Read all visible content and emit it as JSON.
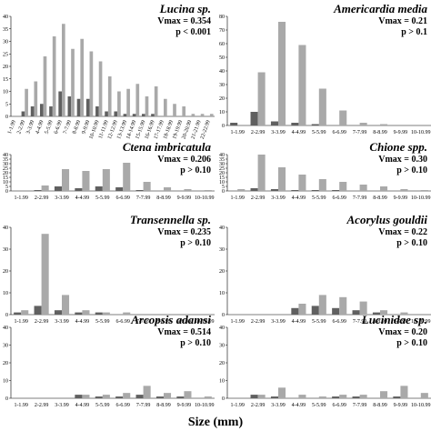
{
  "figure": {
    "xlabel": "Size (mm)"
  },
  "chart_data": [
    {
      "type": "bar",
      "title": "Lucina sp.",
      "vmax": "Vmax = 0.354",
      "p": "p < 0.001",
      "p_color": "#cc0000",
      "ylim": [
        0,
        40
      ],
      "yticks": [
        0,
        5,
        10,
        15,
        20,
        25,
        30,
        35,
        40
      ],
      "categories": [
        "1-1.99",
        "2-2.99",
        "3-3.99",
        "4-4.99",
        "5-5.99",
        "6-6.99",
        "7-7.99",
        "8-8.99",
        "9-9.99",
        "10-10.99",
        "11-11.99",
        "12-12.99",
        "13-13.99",
        "14-14.99",
        "15-15.99",
        "16-16.99",
        "17-17.99",
        "18-18.99",
        "19-19.99",
        "20-20.99",
        "21-21.99",
        "22-22.99"
      ],
      "series": [
        {
          "values": [
            0,
            2,
            4,
            5,
            4,
            10,
            8,
            7,
            7,
            4,
            2,
            2,
            1,
            1,
            1,
            1,
            0,
            0,
            0,
            0,
            0,
            0
          ],
          "color": "#606060"
        },
        {
          "values": [
            0,
            11,
            14,
            24,
            32,
            37,
            27,
            31,
            26,
            22,
            16,
            10,
            11,
            13,
            8,
            12,
            7,
            5,
            4,
            1,
            1,
            1
          ],
          "color": "#a9a9a9"
        }
      ]
    },
    {
      "type": "bar",
      "title": "Americardia media",
      "vmax": "Vmax = 0.21",
      "p": "p > 0.1",
      "p_color": "#000000",
      "ylim": [
        0,
        80
      ],
      "yticks": [
        0,
        10,
        20,
        30,
        40,
        50,
        60,
        70,
        80
      ],
      "categories": [
        "1-1.99",
        "2-2.99",
        "3-3.99",
        "4-4.99",
        "5-5.99",
        "6-6.99",
        "7-7.99",
        "8-8.99",
        "9-9.99",
        "10-10.99"
      ],
      "series": [
        {
          "values": [
            2,
            10,
            3,
            2,
            1,
            0,
            0,
            0,
            0,
            0
          ],
          "color": "#606060"
        },
        {
          "values": [
            0,
            39,
            76,
            59,
            27,
            11,
            2,
            1,
            0,
            0
          ],
          "color": "#a9a9a9"
        }
      ]
    },
    {
      "type": "bar",
      "title": "Ctena imbricatula",
      "vmax": "Vmax = 0.206",
      "p": "p > 0.10",
      "p_color": "#000000",
      "ylim": [
        0,
        40
      ],
      "yticks": [
        0,
        5,
        10,
        15,
        20,
        25,
        30,
        35,
        40
      ],
      "categories": [
        "1-1.99",
        "2-2.99",
        "3-3.99",
        "4-4.99",
        "5-5.99",
        "6-6.99",
        "7-7.99",
        "8-8.99",
        "9-9.99",
        "10-10.99"
      ],
      "series": [
        {
          "values": [
            0,
            1,
            5,
            3,
            5,
            4,
            1,
            0,
            0,
            0
          ],
          "color": "#606060"
        },
        {
          "values": [
            0,
            6,
            24,
            22,
            24,
            31,
            10,
            4,
            2,
            1
          ],
          "color": "#a9a9a9"
        }
      ]
    },
    {
      "type": "bar",
      "title": "Chione spp.",
      "vmax": "Vmax = 0.30",
      "p": "p > 0.10",
      "p_color": "#000000",
      "ylim": [
        0,
        40
      ],
      "yticks": [
        0,
        5,
        10,
        15,
        20,
        25,
        30,
        35,
        40
      ],
      "categories": [
        "1-1.99",
        "2-2.99",
        "3-3.99",
        "4-4.99",
        "5-5.99",
        "6-6.99",
        "7-7.99",
        "8-8.99",
        "9-9.99",
        "10-10.99"
      ],
      "series": [
        {
          "values": [
            0,
            3,
            2,
            1,
            1,
            1,
            0,
            0,
            0,
            0
          ],
          "color": "#606060"
        },
        {
          "values": [
            2,
            40,
            26,
            18,
            13,
            10,
            7,
            5,
            2,
            1
          ],
          "color": "#a9a9a9"
        }
      ]
    },
    {
      "type": "bar",
      "title": "Transennella sp.",
      "vmax": "Vmax = 0.235",
      "p": "p > 0.10",
      "p_color": "#000000",
      "ylim": [
        0,
        40
      ],
      "yticks": [
        0,
        10,
        20,
        30,
        40
      ],
      "categories": [
        "1-1.99",
        "2-2.99",
        "3-3.99",
        "4-4.99",
        "5-5.99",
        "6-6.99",
        "7-7.99",
        "8-8.99",
        "9-9.99",
        "10-10.99"
      ],
      "series": [
        {
          "values": [
            1,
            4,
            2,
            1,
            1,
            0,
            0,
            0,
            0,
            0
          ],
          "color": "#606060"
        },
        {
          "values": [
            2,
            37,
            9,
            2,
            1,
            1,
            0,
            0,
            0,
            0
          ],
          "color": "#a9a9a9"
        }
      ]
    },
    {
      "type": "bar",
      "title": "Acorylus gouldii",
      "vmax": "Vmax = 0.22",
      "p": "p > 0.10",
      "p_color": "#000000",
      "ylim": [
        0,
        40
      ],
      "yticks": [
        0,
        10,
        20,
        30,
        40
      ],
      "categories": [
        "1-1.99",
        "2-2.99",
        "3-3.99",
        "4-4.99",
        "5-5.99",
        "6-6.99",
        "7-7.99",
        "8-8.99",
        "9-9.99",
        "10-10.99"
      ],
      "series": [
        {
          "values": [
            0,
            0,
            0,
            3,
            4,
            3,
            2,
            1,
            0,
            0
          ],
          "color": "#606060"
        },
        {
          "values": [
            0,
            0,
            0,
            5,
            9,
            8,
            6,
            2,
            1,
            0
          ],
          "color": "#a9a9a9"
        }
      ]
    },
    {
      "type": "bar",
      "title": "Arcopsis adamsi",
      "vmax": "Vmax = 0.514",
      "p": "p > 0.10",
      "p_color": "#000000",
      "ylim": [
        0,
        40
      ],
      "yticks": [
        0,
        10,
        20,
        30,
        40
      ],
      "categories": [
        "1-1.99",
        "2-2.99",
        "3-3.99",
        "4-4.99",
        "5-5.99",
        "6-6.99",
        "7-7.99",
        "8-8.99",
        "9-9.99",
        "10-10.99"
      ],
      "series": [
        {
          "values": [
            0,
            0,
            0,
            2,
            1,
            1,
            2,
            1,
            1,
            0
          ],
          "color": "#606060"
        },
        {
          "values": [
            0,
            0,
            0,
            2,
            2,
            3,
            7,
            3,
            4,
            1
          ],
          "color": "#a9a9a9"
        }
      ]
    },
    {
      "type": "bar",
      "title": "Lucinidae sp.",
      "vmax": "Vmax = 0.20",
      "p": "p > 0.10",
      "p_color": "#000000",
      "ylim": [
        0,
        40
      ],
      "yticks": [
        0,
        10,
        20,
        30,
        40
      ],
      "categories": [
        "1-1.99",
        "2-2.99",
        "3-3.99",
        "4-4.99",
        "5-5.99",
        "6-6.99",
        "7-7.99",
        "8-8.99",
        "9-9.99",
        "10-10.99"
      ],
      "series": [
        {
          "values": [
            0,
            2,
            1,
            0,
            0,
            1,
            1,
            0,
            1,
            0
          ],
          "color": "#606060"
        },
        {
          "values": [
            0,
            2,
            6,
            2,
            1,
            2,
            2,
            4,
            7,
            3
          ],
          "color": "#a9a9a9"
        }
      ]
    }
  ]
}
